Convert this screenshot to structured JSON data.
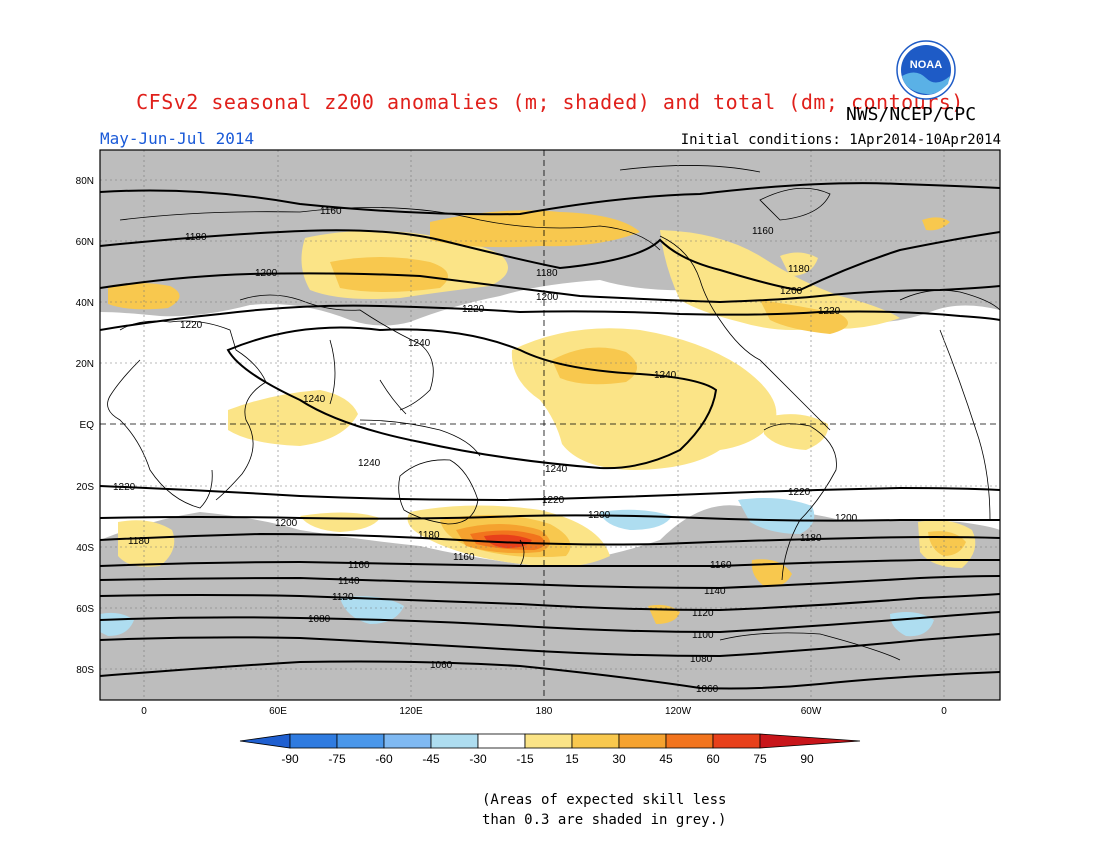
{
  "header": {
    "title": "CFSv2 seasonal z200 anomalies (m; shaded) and total (dm; contours)",
    "agency": "NWS/NCEP/CPC",
    "logo_text": "NOAA",
    "period": "May-Jun-Jul 2014",
    "initial_conditions": "Initial conditions: 1Apr2014-10Apr2014"
  },
  "map": {
    "lat_labels": [
      "80N",
      "60N",
      "40N",
      "20N",
      "EQ",
      "20S",
      "40S",
      "60S",
      "80S"
    ],
    "lon_labels": [
      "0",
      "60E",
      "120E",
      "180",
      "120W",
      "60W",
      "0"
    ],
    "contour_labels": [
      "1160",
      "1180",
      "1200",
      "1220",
      "1240",
      "1240",
      "1240",
      "1240",
      "1220",
      "1200",
      "1180",
      "1160",
      "1200",
      "1180",
      "1220",
      "1160",
      "1180",
      "1200",
      "1220",
      "1220",
      "1200",
      "1180",
      "1160",
      "1140",
      "1120",
      "1100",
      "1080",
      "1060",
      "1200",
      "1180",
      "1160",
      "1140",
      "1120",
      "1100",
      "1080",
      "1060",
      "1240",
      "1220",
      "1200"
    ]
  },
  "colorbar": {
    "labels": [
      "-90",
      "-75",
      "-60",
      "-45",
      "-30",
      "-15",
      "15",
      "30",
      "45",
      "60",
      "75",
      "90"
    ],
    "colors": [
      "#1f5fd0",
      "#2f7be0",
      "#4a97ea",
      "#7fb9f2",
      "#aeddf0",
      "#ffffff",
      "#fbe487",
      "#f8c84e",
      "#f5a22f",
      "#f2741d",
      "#e8401a",
      "#c8151a"
    ]
  },
  "footnote": {
    "line1": "(Areas of expected skill less",
    "line2": "than 0.3 are shaded in grey.)"
  },
  "colors": {
    "title": "#e0201b",
    "period": "#1a5ad8",
    "skill_grey": "#bdbdbd"
  }
}
